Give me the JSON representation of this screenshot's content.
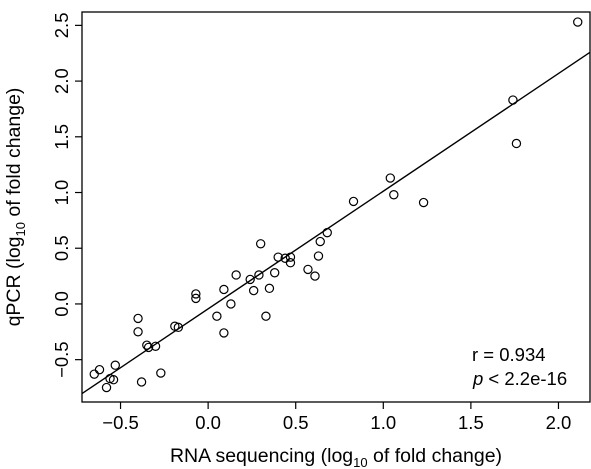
{
  "chart_data": {
    "type": "scatter",
    "title": "",
    "xlabel": {
      "prefix": "RNA sequencing (log",
      "sub": "10",
      "suffix": " of fold change)"
    },
    "ylabel": {
      "prefix": "qPCR (log",
      "sub": "10",
      "suffix": " of fold change)"
    },
    "xlim": [
      -0.72,
      2.18
    ],
    "ylim": [
      -0.88,
      2.62
    ],
    "xticks": [
      -0.5,
      0.0,
      0.5,
      1.0,
      1.5,
      2.0
    ],
    "xtick_labels": [
      "−0.5",
      "0.0",
      "0.5",
      "1.0",
      "1.5",
      "2.0"
    ],
    "yticks": [
      -0.5,
      0.0,
      0.5,
      1.0,
      1.5,
      2.0,
      2.5
    ],
    "ytick_labels": [
      "−0.5",
      "0.0",
      "0.5",
      "1.0",
      "1.5",
      "2.0",
      "2.5"
    ],
    "grid": false,
    "fit_line": {
      "slope": 1.056,
      "intercept": -0.044
    },
    "annotations": {
      "r": "r = 0.934",
      "p_italic": "p",
      "p_rest": " < 2.2e-16"
    },
    "points": [
      {
        "x": -0.65,
        "y": -0.63
      },
      {
        "x": -0.62,
        "y": -0.59
      },
      {
        "x": -0.58,
        "y": -0.75
      },
      {
        "x": -0.56,
        "y": -0.67
      },
      {
        "x": -0.54,
        "y": -0.68
      },
      {
        "x": -0.53,
        "y": -0.55
      },
      {
        "x": -0.4,
        "y": -0.13
      },
      {
        "x": -0.4,
        "y": -0.25
      },
      {
        "x": -0.38,
        "y": -0.7
      },
      {
        "x": -0.35,
        "y": -0.37
      },
      {
        "x": -0.34,
        "y": -0.39
      },
      {
        "x": -0.3,
        "y": -0.38
      },
      {
        "x": -0.27,
        "y": -0.62
      },
      {
        "x": -0.19,
        "y": -0.2
      },
      {
        "x": -0.17,
        "y": -0.21
      },
      {
        "x": -0.07,
        "y": 0.09
      },
      {
        "x": -0.07,
        "y": 0.05
      },
      {
        "x": 0.05,
        "y": -0.11
      },
      {
        "x": 0.09,
        "y": 0.13
      },
      {
        "x": 0.09,
        "y": -0.26
      },
      {
        "x": 0.13,
        "y": 0.0
      },
      {
        "x": 0.16,
        "y": 0.26
      },
      {
        "x": 0.24,
        "y": 0.22
      },
      {
        "x": 0.26,
        "y": 0.12
      },
      {
        "x": 0.29,
        "y": 0.26
      },
      {
        "x": 0.3,
        "y": 0.54
      },
      {
        "x": 0.33,
        "y": -0.11
      },
      {
        "x": 0.35,
        "y": 0.14
      },
      {
        "x": 0.38,
        "y": 0.28
      },
      {
        "x": 0.4,
        "y": 0.42
      },
      {
        "x": 0.44,
        "y": 0.41
      },
      {
        "x": 0.47,
        "y": 0.37
      },
      {
        "x": 0.47,
        "y": 0.42
      },
      {
        "x": 0.57,
        "y": 0.31
      },
      {
        "x": 0.61,
        "y": 0.25
      },
      {
        "x": 0.63,
        "y": 0.43
      },
      {
        "x": 0.64,
        "y": 0.56
      },
      {
        "x": 0.68,
        "y": 0.64
      },
      {
        "x": 0.83,
        "y": 0.92
      },
      {
        "x": 1.04,
        "y": 1.13
      },
      {
        "x": 1.06,
        "y": 0.98
      },
      {
        "x": 1.23,
        "y": 0.91
      },
      {
        "x": 1.74,
        "y": 1.83
      },
      {
        "x": 1.76,
        "y": 1.44
      },
      {
        "x": 2.11,
        "y": 2.53
      }
    ]
  }
}
